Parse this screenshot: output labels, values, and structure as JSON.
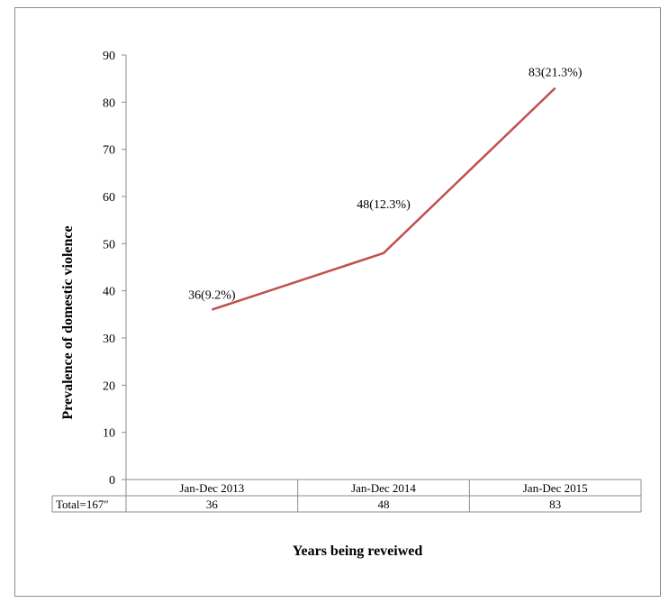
{
  "chart_data": {
    "type": "line",
    "categories": [
      "Jan-Dec 2013",
      "Jan-Dec 2014",
      "Jan-Dec 2015"
    ],
    "series": [
      {
        "values": [
          36,
          48,
          83
        ],
        "color": "#c0504d"
      }
    ],
    "data_labels": [
      "36(9.2%)",
      "48(12.3%)",
      "83(21.3%)"
    ],
    "xlabel": "Years being reveiwed",
    "ylabel": "Prevalence of domestic violence",
    "ylim": [
      0,
      90
    ],
    "yticks": [
      0,
      10,
      20,
      30,
      40,
      50,
      60,
      70,
      80,
      90
    ],
    "grid": false,
    "data_table": {
      "row_label": "Total=167″",
      "values": [
        "36",
        "48",
        "83"
      ]
    }
  }
}
